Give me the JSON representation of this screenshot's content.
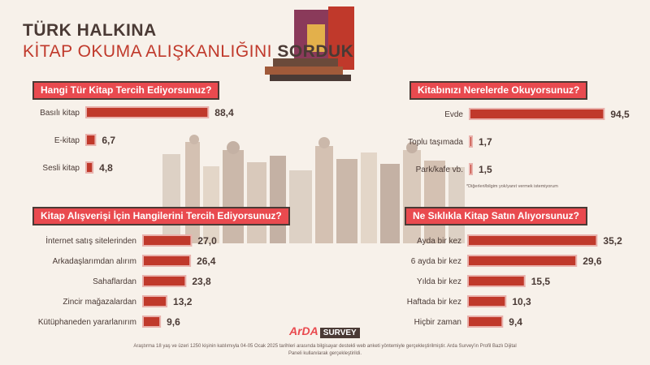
{
  "header": {
    "title_line1": "TÜRK HALKINA",
    "title_line2a": "KİTAP OKUMA ALIŞKANLIĞINI",
    "title_line2b": "SORDUK"
  },
  "colors": {
    "bar": "#c0392b",
    "bar_light": "#e9b2ad",
    "text": "#4a3a35",
    "accent": "#e94a4f"
  },
  "chart_data": [
    {
      "type": "bar",
      "title": "Hangi Tür Kitap Tercih Ediyorsunuz?",
      "categories": [
        "Basılı kitap",
        "E-kitap",
        "Sesli kitap"
      ],
      "values": [
        88.4,
        6.7,
        4.8
      ],
      "value_labels": [
        "88,4",
        "6,7",
        "4,8"
      ],
      "xlim": [
        0,
        100
      ]
    },
    {
      "type": "bar",
      "title": "Kitabınızı Nerelerde Okuyorsunuz?",
      "categories": [
        "Evde",
        "Toplu taşımada",
        "Park/kafe vb."
      ],
      "values": [
        94.5,
        1.7,
        1.5
      ],
      "value_labels": [
        "94,5",
        "1,7",
        "1,5"
      ],
      "xlim": [
        0,
        100
      ]
    },
    {
      "type": "bar",
      "title": "Kitap Alışverişi İçin Hangilerini Tercih Ediyorsunuz?",
      "categories": [
        "İnternet satış sitelerinden",
        "Arkadaşlarımdan alırım",
        "Sahaflardan",
        "Zincir mağazalardan",
        "Kütüphaneden yararlanırım"
      ],
      "values": [
        27.0,
        26.4,
        23.8,
        13.2,
        9.6
      ],
      "value_labels": [
        "27,0",
        "26,4",
        "23,8",
        "13,2",
        "9,6"
      ],
      "xlim": [
        0,
        100
      ]
    },
    {
      "type": "bar",
      "title": "Ne Sıklıkla Kitap Satın Alıyorsunuz?",
      "categories": [
        "Ayda bir kez",
        "6 ayda bir kez",
        "Yılda bir kez",
        "Haftada bir kez",
        "Hiçbir zaman"
      ],
      "values": [
        35.2,
        29.6,
        15.5,
        10.3,
        9.4
      ],
      "value_labels": [
        "35,2",
        "29,6",
        "15,5",
        "10,3",
        "9,4"
      ],
      "xlim": [
        0,
        100
      ]
    }
  ],
  "footnote": "*Diğerleri/bilgim yok/yanıt vermek istemiyorum",
  "brand": {
    "part1": "ArDA",
    "part2": "SURVEY"
  },
  "note": "Araştırma 18 yaş ve üzeri 1250 kişinin katılımıyla 04-05 Ocak 2025 tarihleri arasında bilgisayar destekli web anketi yöntemiyle gerçekleştirilmiştir. Arda Survey'in Profil Bazlı Dijital Paneli kullanılarak gerçekleştirildi."
}
